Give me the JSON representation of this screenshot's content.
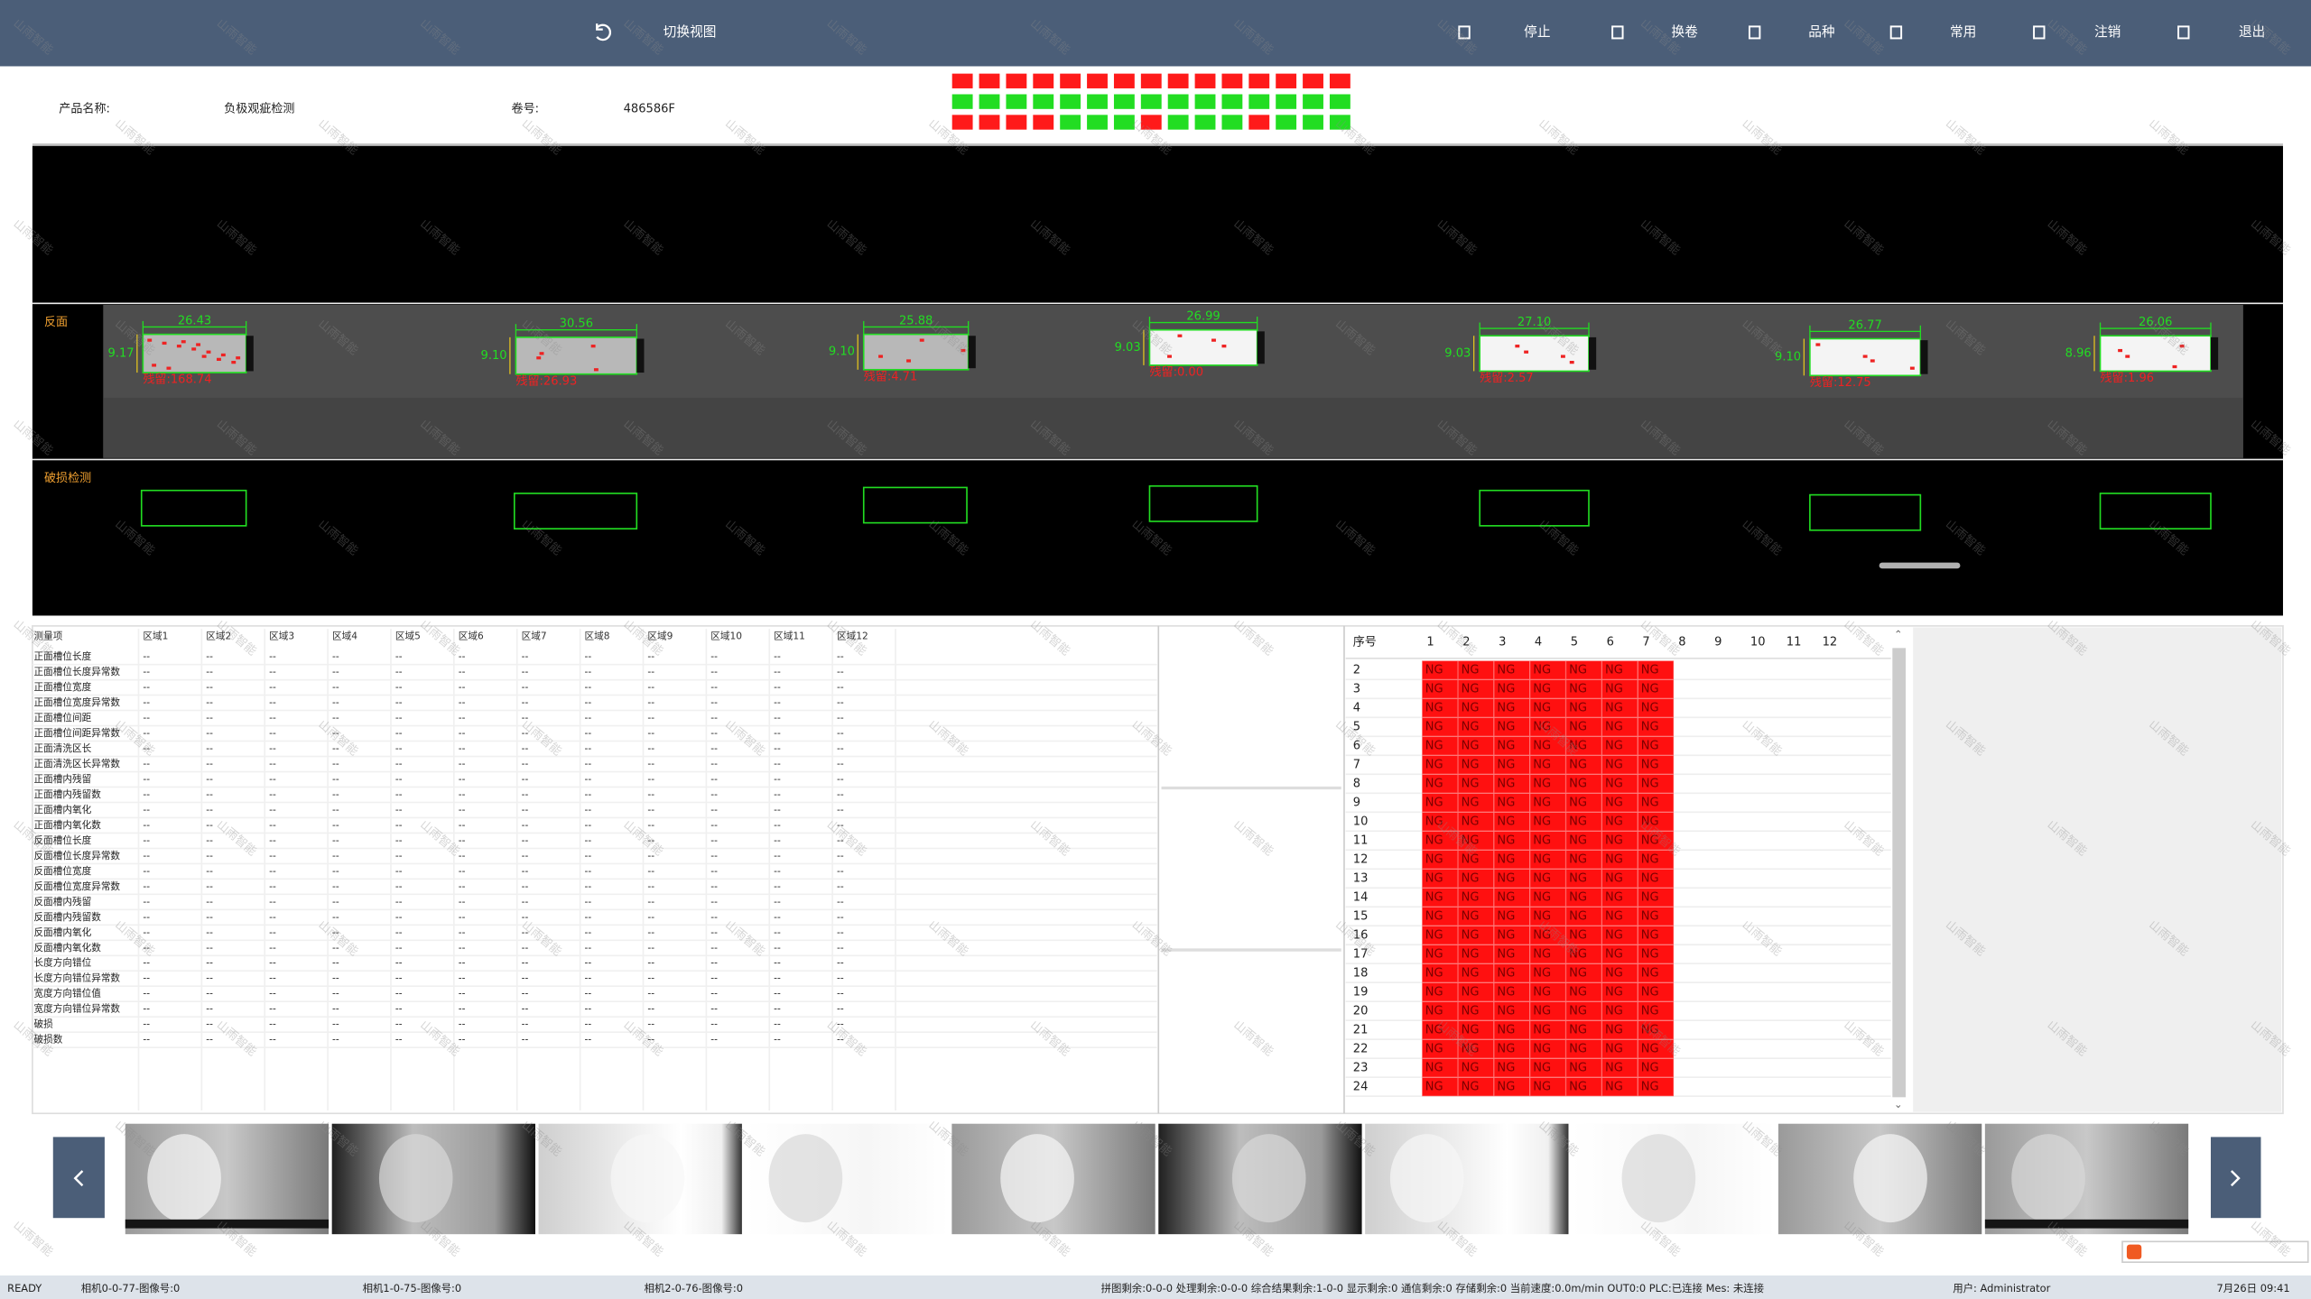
{
  "toolbar": {
    "switch_view": "切换视图",
    "buttons": [
      "停止",
      "换卷",
      "品种",
      "常用",
      "注销",
      "退出"
    ]
  },
  "product": {
    "name_label": "产品名称:",
    "name": "负极观疵检测",
    "roll_label": "卷号:",
    "roll": "486586F"
  },
  "status_grid": [
    [
      "#ff1a1a",
      "#ff1a1a",
      "#ff1a1a",
      "#ff1a1a",
      "#ff1a1a",
      "#ff1a1a",
      "#ff1a1a",
      "#ff1a1a",
      "#ff1a1a",
      "#ff1a1a",
      "#ff1a1a",
      "#ff1a1a",
      "#ff1a1a",
      "#ff1a1a",
      "#ff1a1a"
    ],
    [
      "#22dd22",
      "#22dd22",
      "#22dd22",
      "#22dd22",
      "#22dd22",
      "#22dd22",
      "#22dd22",
      "#22dd22",
      "#22dd22",
      "#22dd22",
      "#22dd22",
      "#22dd22",
      "#22dd22",
      "#22dd22",
      "#22dd22"
    ],
    [
      "#ff1a1a",
      "#ff1a1a",
      "#ff1a1a",
      "#ff1a1a",
      "#22dd22",
      "#22dd22",
      "#22dd22",
      "#ff1a1a",
      "#22dd22",
      "#22dd22",
      "#22dd22",
      "#ff1a1a",
      "#22dd22",
      "#22dd22",
      "#22dd22"
    ]
  ],
  "image_panel": {
    "back_label": "反面",
    "damage_label": "破损检测",
    "specimens": [
      {
        "width": "26.43",
        "height": "9.17",
        "residual": "残留:168.74"
      },
      {
        "width": "30.56",
        "height": "9.10",
        "residual": "残留:26.93"
      },
      {
        "width": "25.88",
        "height": "9.10",
        "residual": "残留:4.71"
      },
      {
        "width": "26.99",
        "height": "9.03",
        "residual": "残留:0.00"
      },
      {
        "width": "27.10",
        "height": "9.03",
        "residual": "残留:2.57"
      },
      {
        "width": "26.77",
        "height": "9.10",
        "residual": "残留:12.75"
      },
      {
        "width": "26.06",
        "height": "8.96",
        "residual": "残留:1.96"
      }
    ]
  },
  "measure_table": {
    "header": [
      "测量项",
      "区域1",
      "区域2",
      "区域3",
      "区域4",
      "区域5",
      "区域6",
      "区域7",
      "区域8",
      "区域9",
      "区域10",
      "区域11",
      "区域12"
    ],
    "rows": [
      [
        "正面槽位长度",
        "--",
        "--",
        "--",
        "--",
        "--",
        "--",
        "--",
        "--",
        "--",
        "--",
        "--",
        "--"
      ],
      [
        "正面槽位长度异常数",
        "--",
        "--",
        "--",
        "--",
        "--",
        "--",
        "--",
        "--",
        "--",
        "--",
        "--",
        "--"
      ],
      [
        "正面槽位宽度",
        "--",
        "--",
        "--",
        "--",
        "--",
        "--",
        "--",
        "--",
        "--",
        "--",
        "--",
        "--"
      ],
      [
        "正面槽位宽度异常数",
        "--",
        "--",
        "--",
        "--",
        "--",
        "--",
        "--",
        "--",
        "--",
        "--",
        "--",
        "--"
      ],
      [
        "正面槽位间距",
        "--",
        "--",
        "--",
        "--",
        "--",
        "--",
        "--",
        "--",
        "--",
        "--",
        "--",
        "--"
      ],
      [
        "正面槽位间距异常数",
        "--",
        "--",
        "--",
        "--",
        "--",
        "--",
        "--",
        "--",
        "--",
        "--",
        "--",
        "--"
      ],
      [
        "正面清洗区长",
        "--",
        "--",
        "--",
        "--",
        "--",
        "--",
        "--",
        "--",
        "--",
        "--",
        "--",
        "--"
      ],
      [
        "正面清洗区长异常数",
        "--",
        "--",
        "--",
        "--",
        "--",
        "--",
        "--",
        "--",
        "--",
        "--",
        "--",
        "--"
      ],
      [
        "正面槽内残留",
        "--",
        "--",
        "--",
        "--",
        "--",
        "--",
        "--",
        "--",
        "--",
        "--",
        "--",
        "--"
      ],
      [
        "正面槽内残留数",
        "--",
        "--",
        "--",
        "--",
        "--",
        "--",
        "--",
        "--",
        "--",
        "--",
        "--",
        "--"
      ],
      [
        "正面槽内氧化",
        "--",
        "--",
        "--",
        "--",
        "--",
        "--",
        "--",
        "--",
        "--",
        "--",
        "--",
        "--"
      ],
      [
        "正面槽内氧化数",
        "--",
        "--",
        "--",
        "--",
        "--",
        "--",
        "--",
        "--",
        "--",
        "--",
        "--",
        "--"
      ],
      [
        "反面槽位长度",
        "--",
        "--",
        "--",
        "--",
        "--",
        "--",
        "--",
        "--",
        "--",
        "--",
        "--",
        "--"
      ],
      [
        "反面槽位长度异常数",
        "--",
        "--",
        "--",
        "--",
        "--",
        "--",
        "--",
        "--",
        "--",
        "--",
        "--",
        "--"
      ],
      [
        "反面槽位宽度",
        "--",
        "--",
        "--",
        "--",
        "--",
        "--",
        "--",
        "--",
        "--",
        "--",
        "--",
        "--"
      ],
      [
        "反面槽位宽度异常数",
        "--",
        "--",
        "--",
        "--",
        "--",
        "--",
        "--",
        "--",
        "--",
        "--",
        "--",
        "--"
      ],
      [
        "反面槽内残留",
        "--",
        "--",
        "--",
        "--",
        "--",
        "--",
        "--",
        "--",
        "--",
        "--",
        "--",
        "--"
      ],
      [
        "反面槽内残留数",
        "--",
        "--",
        "--",
        "--",
        "--",
        "--",
        "--",
        "--",
        "--",
        "--",
        "--",
        "--"
      ],
      [
        "反面槽内氧化",
        "--",
        "--",
        "--",
        "--",
        "--",
        "--",
        "--",
        "--",
        "--",
        "--",
        "--",
        "--"
      ],
      [
        "反面槽内氧化数",
        "--",
        "--",
        "--",
        "--",
        "--",
        "--",
        "--",
        "--",
        "--",
        "--",
        "--",
        "--"
      ],
      [
        "长度方向错位",
        "--",
        "--",
        "--",
        "--",
        "--",
        "--",
        "--",
        "--",
        "--",
        "--",
        "--",
        "--"
      ],
      [
        "长度方向错位异常数",
        "--",
        "--",
        "--",
        "--",
        "--",
        "--",
        "--",
        "--",
        "--",
        "--",
        "--",
        "--"
      ],
      [
        "宽度方向错位值",
        "--",
        "--",
        "--",
        "--",
        "--",
        "--",
        "--",
        "--",
        "--",
        "--",
        "--",
        "--"
      ],
      [
        "宽度方向错位异常数",
        "--",
        "--",
        "--",
        "--",
        "--",
        "--",
        "--",
        "--",
        "--",
        "--",
        "--",
        "--"
      ],
      [
        "破损",
        "--",
        "--",
        "--",
        "--",
        "--",
        "--",
        "--",
        "--",
        "--",
        "--",
        "--",
        "--"
      ],
      [
        "破损数",
        "--",
        "--",
        "--",
        "--",
        "--",
        "--",
        "--",
        "--",
        "--",
        "--",
        "--",
        "--"
      ]
    ]
  },
  "ng_table": {
    "header": [
      "序号",
      "1",
      "2",
      "3",
      "4",
      "5",
      "6",
      "7",
      "8",
      "9",
      "10",
      "11",
      "12"
    ],
    "rows": [
      [
        "2",
        "NG",
        "NG",
        "NG",
        "NG",
        "NG",
        "NG",
        "NG"
      ],
      [
        "3",
        "NG",
        "NG",
        "NG",
        "NG",
        "NG",
        "NG",
        "NG"
      ],
      [
        "4",
        "NG",
        "NG",
        "NG",
        "NG",
        "NG",
        "NG",
        "NG"
      ],
      [
        "5",
        "NG",
        "NG",
        "NG",
        "NG",
        "NG",
        "NG",
        "NG"
      ],
      [
        "6",
        "NG",
        "NG",
        "NG",
        "NG",
        "NG",
        "NG",
        "NG"
      ],
      [
        "7",
        "NG",
        "NG",
        "NG",
        "NG",
        "NG",
        "NG",
        "NG"
      ],
      [
        "8",
        "NG",
        "NG",
        "NG",
        "NG",
        "NG",
        "NG",
        "NG"
      ],
      [
        "9",
        "NG",
        "NG",
        "NG",
        "NG",
        "NG",
        "NG",
        "NG"
      ],
      [
        "10",
        "NG",
        "NG",
        "NG",
        "NG",
        "NG",
        "NG",
        "NG"
      ],
      [
        "11",
        "NG",
        "NG",
        "NG",
        "NG",
        "NG",
        "NG",
        "NG"
      ],
      [
        "12",
        "NG",
        "NG",
        "NG",
        "NG",
        "NG",
        "NG",
        "NG"
      ],
      [
        "13",
        "NG",
        "NG",
        "NG",
        "NG",
        "NG",
        "NG",
        "NG"
      ],
      [
        "14",
        "NG",
        "NG",
        "NG",
        "NG",
        "NG",
        "NG",
        "NG"
      ],
      [
        "15",
        "NG",
        "NG",
        "NG",
        "NG",
        "NG",
        "NG",
        "NG"
      ],
      [
        "16",
        "NG",
        "NG",
        "NG",
        "NG",
        "NG",
        "NG",
        "NG"
      ],
      [
        "17",
        "NG",
        "NG",
        "NG",
        "NG",
        "NG",
        "NG",
        "NG"
      ],
      [
        "18",
        "NG",
        "NG",
        "NG",
        "NG",
        "NG",
        "NG",
        "NG"
      ],
      [
        "19",
        "NG",
        "NG",
        "NG",
        "NG",
        "NG",
        "NG",
        "NG"
      ],
      [
        "20",
        "NG",
        "NG",
        "NG",
        "NG",
        "NG",
        "NG",
        "NG"
      ],
      [
        "21",
        "NG",
        "NG",
        "NG",
        "NG",
        "NG",
        "NG",
        "NG"
      ],
      [
        "22",
        "NG",
        "NG",
        "NG",
        "NG",
        "NG",
        "NG",
        "NG"
      ],
      [
        "23",
        "NG",
        "NG",
        "NG",
        "NG",
        "NG",
        "NG",
        "NG"
      ],
      [
        "24",
        "NG",
        "NG",
        "NG",
        "NG",
        "NG",
        "NG",
        "NG"
      ]
    ]
  },
  "status_bar": {
    "state": "READY",
    "cameras": [
      "相机0-0-77-图像号:0",
      "相机1-0-75-图像号:0",
      "相机2-0-76-图像号:0"
    ],
    "counters": "拼图剩余:0-0-0  处理剩余:0-0-0  综合结果剩余:1-0-0  显示剩余:0  通信剩余:0  存储剩余:0  当前速度:0.0m/min  OUT0:0  PLC:已连接 Mes: 未连接",
    "user": "用户: Administrator",
    "time": "7月26日 09:41"
  },
  "watermark": "山雨智能"
}
